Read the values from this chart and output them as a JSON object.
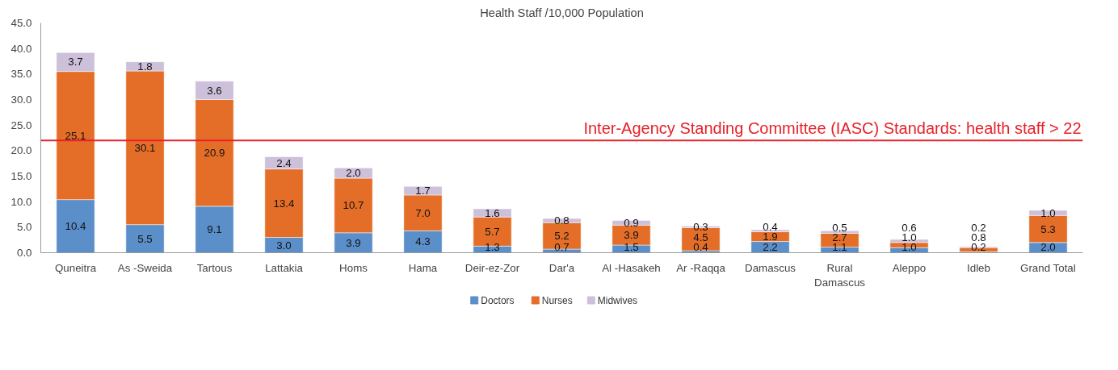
{
  "chart_data": {
    "type": "bar",
    "title": "Health Staff /10,000 Population",
    "stacked": true,
    "legend": "bottom",
    "grid": false,
    "categories": [
      "Quneitra",
      "As -Sweida",
      "Tartous",
      "Lattakia",
      "Homs",
      "Hama",
      "Deir-ez-Zor",
      "Dar'a",
      "Al -Hasakeh",
      "Ar -Raqqa",
      "Damascus",
      "Rural\nDamascus",
      "Aleppo",
      "Idleb",
      "Grand Total"
    ],
    "series": [
      {
        "name": "Doctors",
        "color": "#5b8fc9",
        "values": [
          10.4,
          5.5,
          9.1,
          3.0,
          3.9,
          4.3,
          1.3,
          0.7,
          1.5,
          0.4,
          2.2,
          1.1,
          1.0,
          0.2,
          2.0
        ],
        "value_labels": [
          "10.4",
          "5.5",
          "9.1",
          "3.0",
          "3.9",
          "4.3",
          "1.3",
          "0.7",
          "1.5",
          "0.4",
          "2.2",
          "1.1",
          "1.0",
          "0.2",
          "2.0"
        ]
      },
      {
        "name": "Nurses",
        "color": "#e46e28",
        "values": [
          25.1,
          30.1,
          20.9,
          13.4,
          10.7,
          7.0,
          5.7,
          5.2,
          3.9,
          4.5,
          1.9,
          2.7,
          1.0,
          0.8,
          5.3
        ],
        "value_labels": [
          "25.1",
          "30.1",
          "20.9",
          "13.4",
          "10.7",
          "7.0",
          "5.7",
          "5.2",
          "3.9",
          "4.5",
          "1.9",
          "2.7",
          "1.0",
          "0.8",
          "5.3"
        ]
      },
      {
        "name": "Midwives",
        "color": "#ccc0da",
        "values": [
          3.7,
          1.8,
          3.6,
          2.4,
          2.0,
          1.7,
          1.6,
          0.8,
          0.9,
          0.3,
          0.4,
          0.5,
          0.6,
          0.2,
          1.0
        ],
        "value_labels": [
          "3.7",
          "1.8",
          "3.6",
          "2.4",
          "2.0",
          "1.7",
          "1.6",
          "0.8",
          "0.9",
          "0.3",
          "0.4",
          "0.5",
          "0.6",
          "0.2",
          "1.0"
        ]
      }
    ],
    "ylim": [
      0,
      45
    ],
    "yticks": [
      {
        "value": 0,
        "label": "0.0"
      },
      {
        "value": 5,
        "label": "5.0"
      },
      {
        "value": 10,
        "label": "10.0"
      },
      {
        "value": 15,
        "label": "15.0"
      },
      {
        "value": 20,
        "label": "20.0"
      },
      {
        "value": 25,
        "label": "25.0"
      },
      {
        "value": 30,
        "label": "30.0"
      },
      {
        "value": 35,
        "label": "35.0"
      },
      {
        "value": 40,
        "label": "40.0"
      },
      {
        "value": 45,
        "label": "45.0"
      }
    ],
    "ref_lines": [
      {
        "axis": "y",
        "value": 22,
        "label": "Inter-Agency Standing Committee (IASC) Standards: health staff > 22",
        "color": "#e8202a"
      }
    ]
  }
}
